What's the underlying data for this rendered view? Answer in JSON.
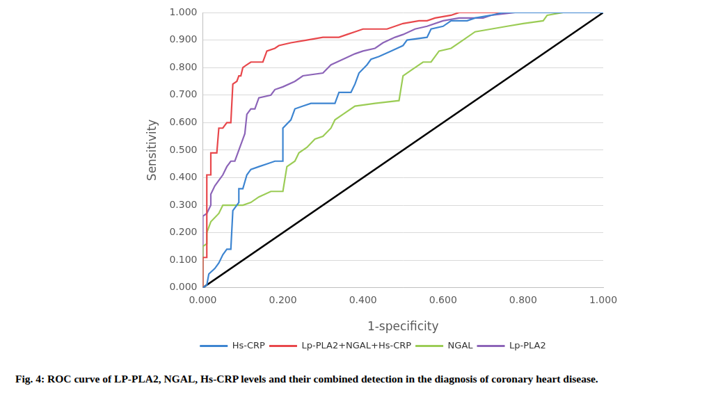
{
  "chart_data": {
    "type": "line",
    "caption": "Fig. 4: ROC curve of LP-PLA2, NGAL, Hs-CRP levels and their combined detection in the diagnosis of coronary heart disease.",
    "x_label": "1-specificity",
    "y_label": "Sensitivity",
    "xlim": [
      0,
      1
    ],
    "ylim": [
      0,
      1
    ],
    "xticks": [
      {
        "value": 0,
        "label": "0.000"
      },
      {
        "value": 0.2,
        "label": "0.200"
      },
      {
        "value": 0.4,
        "label": "0.400"
      },
      {
        "value": 0.6,
        "label": "0.600"
      },
      {
        "value": 0.8,
        "label": "0.800"
      },
      {
        "value": 1,
        "label": "1.000"
      }
    ],
    "yticks": [
      {
        "value": 0,
        "label": "0.000"
      },
      {
        "value": 0.1,
        "label": "0.100"
      },
      {
        "value": 0.2,
        "label": "0.200"
      },
      {
        "value": 0.3,
        "label": "0.300"
      },
      {
        "value": 0.4,
        "label": "0.400"
      },
      {
        "value": 0.5,
        "label": "0.500"
      },
      {
        "value": 0.6,
        "label": "0.600"
      },
      {
        "value": 0.7,
        "label": "0.700"
      },
      {
        "value": 0.8,
        "label": "0.800"
      },
      {
        "value": 0.9,
        "label": "0.900"
      },
      {
        "value": 1,
        "label": "1.000"
      }
    ],
    "grid": "y",
    "legend": "bottom",
    "series": [
      {
        "name": "Hs-CRP",
        "color": "#3d85d1",
        "x": [
          0,
          0.01,
          0.015,
          0.03,
          0.04,
          0.05,
          0.06,
          0.07,
          0.075,
          0.09,
          0.09,
          0.1,
          0.11,
          0.12,
          0.14,
          0.16,
          0.18,
          0.2,
          0.2,
          0.22,
          0.23,
          0.25,
          0.27,
          0.33,
          0.34,
          0.37,
          0.38,
          0.39,
          0.41,
          0.42,
          0.44,
          0.47,
          0.5,
          0.51,
          0.56,
          0.57,
          0.6,
          0.62,
          0.66,
          0.68,
          0.72,
          0.75,
          1
        ],
        "values": [
          0,
          0.01,
          0.05,
          0.07,
          0.09,
          0.12,
          0.14,
          0.14,
          0.28,
          0.31,
          0.36,
          0.36,
          0.41,
          0.43,
          0.44,
          0.45,
          0.46,
          0.46,
          0.58,
          0.61,
          0.65,
          0.66,
          0.67,
          0.67,
          0.71,
          0.71,
          0.74,
          0.78,
          0.81,
          0.83,
          0.84,
          0.86,
          0.88,
          0.9,
          0.91,
          0.94,
          0.95,
          0.97,
          0.97,
          0.98,
          0.99,
          1,
          1
        ]
      },
      {
        "name": "Lp-PLA2+NGAL+Hs-CRP",
        "color": "#e8474b",
        "x": [
          0,
          0,
          0.01,
          0.01,
          0.02,
          0.02,
          0.035,
          0.04,
          0.05,
          0.06,
          0.07,
          0.075,
          0.085,
          0.09,
          0.095,
          0.1,
          0.11,
          0.12,
          0.15,
          0.16,
          0.18,
          0.19,
          0.22,
          0.26,
          0.3,
          0.34,
          0.36,
          0.38,
          0.4,
          0.46,
          0.5,
          0.54,
          0.56,
          0.58,
          0.62,
          0.64,
          1
        ],
        "values": [
          0,
          0.11,
          0.11,
          0.41,
          0.41,
          0.49,
          0.49,
          0.58,
          0.58,
          0.6,
          0.6,
          0.74,
          0.75,
          0.77,
          0.77,
          0.8,
          0.81,
          0.82,
          0.82,
          0.86,
          0.87,
          0.88,
          0.89,
          0.9,
          0.91,
          0.91,
          0.92,
          0.93,
          0.94,
          0.94,
          0.96,
          0.97,
          0.97,
          0.98,
          0.99,
          1,
          1
        ]
      },
      {
        "name": "NGAL",
        "color": "#9bcc55",
        "x": [
          0,
          0,
          0.01,
          0.01,
          0.02,
          0.04,
          0.05,
          0.1,
          0.12,
          0.14,
          0.17,
          0.2,
          0.21,
          0.23,
          0.24,
          0.26,
          0.28,
          0.3,
          0.32,
          0.33,
          0.35,
          0.38,
          0.43,
          0.49,
          0.5,
          0.52,
          0.55,
          0.57,
          0.59,
          0.62,
          0.65,
          0.68,
          0.72,
          0.76,
          0.8,
          0.85,
          0.86,
          0.9,
          1
        ],
        "values": [
          0,
          0.15,
          0.16,
          0.2,
          0.24,
          0.27,
          0.3,
          0.3,
          0.31,
          0.33,
          0.35,
          0.35,
          0.44,
          0.46,
          0.49,
          0.51,
          0.54,
          0.55,
          0.58,
          0.61,
          0.63,
          0.66,
          0.67,
          0.68,
          0.77,
          0.79,
          0.82,
          0.82,
          0.86,
          0.87,
          0.9,
          0.93,
          0.94,
          0.95,
          0.96,
          0.97,
          0.99,
          1,
          1
        ]
      },
      {
        "name": "Lp-PLA2",
        "color": "#8c64b8",
        "x": [
          0,
          0,
          0.01,
          0.02,
          0.02,
          0.03,
          0.04,
          0.05,
          0.06,
          0.07,
          0.08,
          0.09,
          0.1,
          0.105,
          0.11,
          0.12,
          0.13,
          0.14,
          0.17,
          0.18,
          0.2,
          0.23,
          0.25,
          0.3,
          0.32,
          0.35,
          0.38,
          0.4,
          0.43,
          0.45,
          0.48,
          0.5,
          0.53,
          0.56,
          0.6,
          0.64,
          0.7,
          0.72,
          0.78,
          1
        ],
        "values": [
          0,
          0.26,
          0.27,
          0.3,
          0.34,
          0.37,
          0.39,
          0.41,
          0.44,
          0.46,
          0.46,
          0.5,
          0.54,
          0.56,
          0.63,
          0.65,
          0.65,
          0.69,
          0.7,
          0.72,
          0.73,
          0.75,
          0.77,
          0.78,
          0.81,
          0.83,
          0.85,
          0.86,
          0.87,
          0.89,
          0.91,
          0.92,
          0.94,
          0.95,
          0.97,
          0.98,
          0.98,
          0.99,
          1,
          1
        ]
      },
      {
        "color": "#000000",
        "x": [
          0,
          1
        ],
        "values": [
          0,
          1
        ]
      }
    ]
  }
}
